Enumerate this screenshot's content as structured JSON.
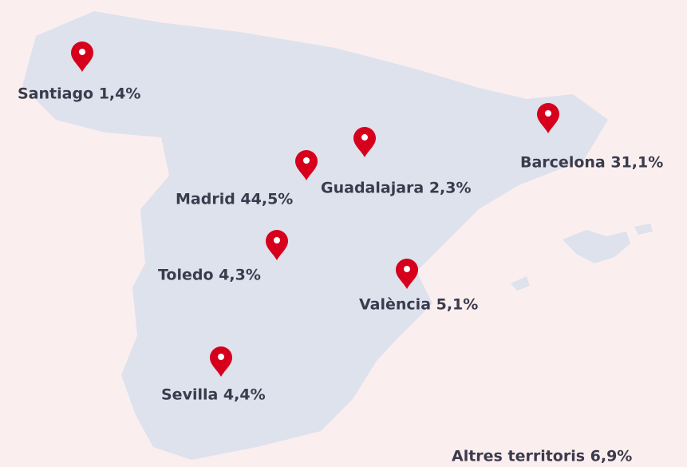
{
  "locations": [
    {
      "label": "Santiago 1,4%"
    },
    {
      "label": "Barcelona 31,1%"
    },
    {
      "label": "Guadalajara 2,3%"
    },
    {
      "label": "Madrid 44,5%"
    },
    {
      "label": "Toledo 4,3%"
    },
    {
      "label": "València 5,1%"
    },
    {
      "label": "Sevilla 4,4%"
    }
  ],
  "other": {
    "label": "Altres territoris 6,9%"
  }
}
